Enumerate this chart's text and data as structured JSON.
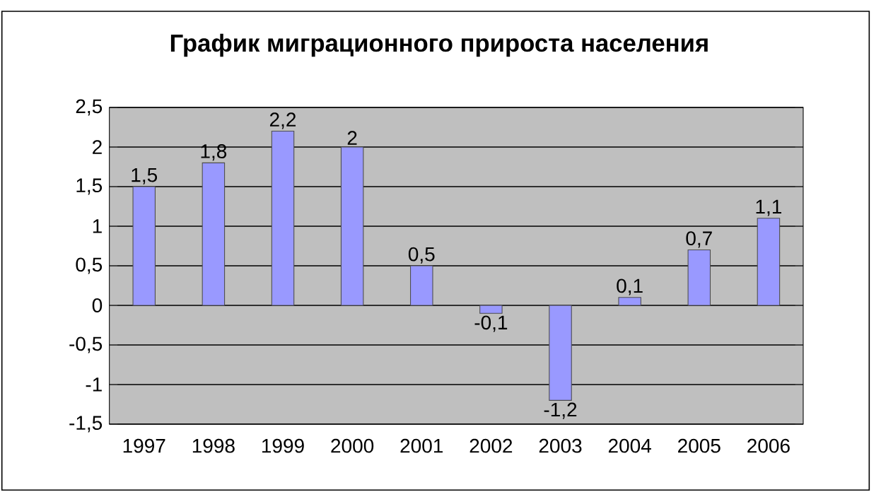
{
  "chart_data": {
    "type": "bar",
    "title": "График миграционного прироста населения",
    "categories": [
      "1997",
      "1998",
      "1999",
      "2000",
      "2001",
      "2002",
      "2003",
      "2004",
      "2005",
      "2006"
    ],
    "values": [
      1.5,
      1.8,
      2.2,
      2,
      0.5,
      -0.1,
      -1.2,
      0.1,
      0.7,
      1.1
    ],
    "value_labels": [
      "1,5",
      "1,8",
      "2,2",
      "2",
      "0,5",
      "-0,1",
      "-1,2",
      "0,1",
      "0,7",
      "1,1"
    ],
    "color": "#9999ff",
    "ylim": [
      -1.5,
      2.5
    ],
    "yticks": [
      {
        "value": -1.5,
        "label": "-1,5"
      },
      {
        "value": -1,
        "label": "-1"
      },
      {
        "value": -0.5,
        "label": "-0,5"
      },
      {
        "value": 0,
        "label": "0"
      },
      {
        "value": 0.5,
        "label": "0,5"
      },
      {
        "value": 1,
        "label": "1"
      },
      {
        "value": 1.5,
        "label": "1,5"
      },
      {
        "value": 2,
        "label": "2"
      },
      {
        "value": 2.5,
        "label": "2,5"
      }
    ],
    "grid": "y"
  }
}
